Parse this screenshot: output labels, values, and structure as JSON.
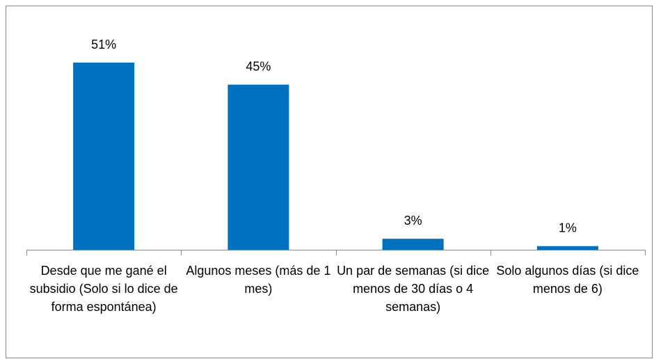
{
  "chart_data": {
    "type": "bar",
    "categories": [
      "Desde que me gané el subsidio  (Solo si lo dice de forma espontánea)",
      "Algunos meses (más de 1 mes)",
      "Un par de semanas (si dice menos de 30 días o 4 semanas)",
      "Solo algunos días (si dice menos de 6)"
    ],
    "values": [
      51,
      45,
      3,
      1
    ],
    "value_labels": [
      "51%",
      "45%",
      "3%",
      "1%"
    ],
    "color": "#0070c0"
  }
}
